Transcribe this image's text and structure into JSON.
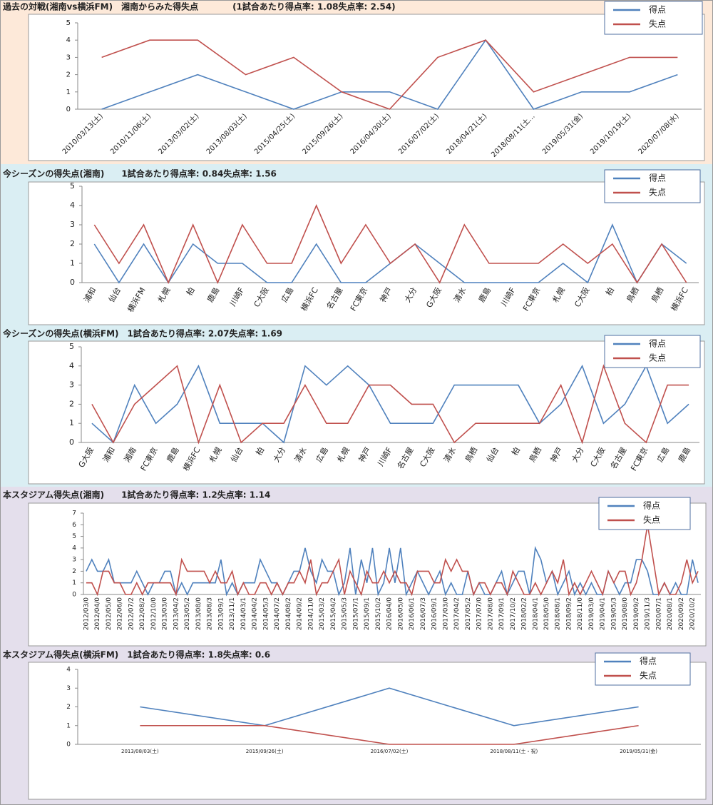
{
  "chart_data": [
    {
      "type": "line",
      "title": "過去の対戦(湘南vs横浜FM)　湘南からみた得失点　　　　(1試合あたり得点率: 1.08失点率: 2.54)",
      "categories": [
        "2010/03/13(土)",
        "2010/11/06(土)",
        "2013/03/02(土)",
        "2013/08/03(土)",
        "2015/04/25(土)",
        "2015/09/26(土)",
        "2016/04/30(土)",
        "2016/07/02(土)",
        "2018/04/21(土)",
        "2018/08/11(土…",
        "2019/05/31(金)",
        "2019/10/19(土)",
        "2020/07/08(水)"
      ],
      "series": [
        {
          "name": "得点",
          "color": "#4f81bd",
          "values": [
            0,
            1,
            2,
            1,
            0,
            1,
            1,
            0,
            4,
            0,
            1,
            1,
            2
          ]
        },
        {
          "name": "失点",
          "color": "#c0504d",
          "values": [
            3,
            4,
            4,
            2,
            3,
            1,
            0,
            3,
            4,
            1,
            2,
            3,
            3
          ]
        }
      ],
      "ylim": [
        0,
        5
      ],
      "yticks": [
        0,
        1,
        2,
        3,
        4,
        5
      ],
      "grid": false,
      "legend": "top-right"
    },
    {
      "type": "line",
      "title": "今シーズンの得失点(湘南)　　1試合あたり得点率: 0.84失点率: 1.56",
      "categories": [
        "浦和",
        "仙台",
        "横浜FM",
        "札幌",
        "柏",
        "鹿島",
        "川崎F",
        "C大阪",
        "広島",
        "横浜FC",
        "名古屋",
        "FC東京",
        "神戸",
        "大分",
        "G大阪",
        "清水",
        "鹿島",
        "川崎F",
        "FC東京",
        "札幌",
        "C大阪",
        "柏",
        "鳥栖",
        "鳥栖",
        "横浜FC"
      ],
      "series": [
        {
          "name": "得点",
          "color": "#4f81bd",
          "values": [
            2,
            0,
            2,
            0,
            2,
            1,
            1,
            0,
            0,
            2,
            0,
            0,
            1,
            2,
            1,
            0,
            0,
            0,
            0,
            1,
            0,
            3,
            0,
            2,
            1
          ]
        },
        {
          "name": "失点",
          "color": "#c0504d",
          "values": [
            3,
            1,
            3,
            0,
            3,
            0,
            3,
            1,
            1,
            4,
            1,
            3,
            1,
            2,
            0,
            3,
            1,
            1,
            1,
            2,
            1,
            2,
            0,
            2,
            0
          ]
        }
      ],
      "ylim": [
        0,
        5
      ],
      "yticks": [
        0,
        1,
        2,
        3,
        4,
        5
      ],
      "grid": false,
      "legend": "top-right"
    },
    {
      "type": "line",
      "title": "今シーズンの得失点(横浜FM)　1試合あたり得点率: 2.07失点率: 1.69",
      "categories": [
        "G大阪",
        "浦和",
        "湘南",
        "FC東京",
        "鹿島",
        "横浜FC",
        "札幌",
        "仙台",
        "柏",
        "大分",
        "清水",
        "広島",
        "札幌",
        "神戸",
        "川崎F",
        "名古屋",
        "C大阪",
        "清水",
        "鳥栖",
        "仙台",
        "柏",
        "鳥栖",
        "神戸",
        "大分",
        "C大阪",
        "名古屋",
        "FC東京",
        "広島",
        "鹿島"
      ],
      "series": [
        {
          "name": "得点",
          "color": "#4f81bd",
          "values": [
            1,
            0,
            3,
            1,
            2,
            4,
            1,
            1,
            1,
            0,
            4,
            3,
            4,
            3,
            1,
            1,
            1,
            3,
            3,
            3,
            3,
            1,
            2,
            4,
            1,
            2,
            4,
            1,
            2
          ]
        },
        {
          "name": "失点",
          "color": "#c0504d",
          "values": [
            2,
            0,
            2,
            3,
            4,
            0,
            3,
            0,
            1,
            1,
            3,
            1,
            1,
            3,
            3,
            2,
            2,
            0,
            1,
            1,
            1,
            1,
            3,
            0,
            4,
            1,
            0,
            3,
            3
          ]
        }
      ],
      "ylim": [
        0,
        5
      ],
      "yticks": [
        0,
        1,
        2,
        3,
        4,
        5
      ],
      "grid": false,
      "legend": "top-right"
    },
    {
      "type": "line",
      "title": "本スタジアム得失点(湘南)　　1試合あたり得点率: 1.2失点率: 1.14",
      "categories": [
        "2012/03/0",
        null,
        "2012/04/0",
        null,
        "2012/05/0",
        null,
        "2012/06/0",
        null,
        "2012/07/2",
        null,
        "2012/08/2",
        null,
        "2012/10/0",
        null,
        "2013/03/0",
        null,
        "2013/04/2",
        null,
        "2013/05/2",
        null,
        "2013/08/0",
        null,
        "2013/08/3",
        null,
        "2013/09/1",
        null,
        "2013/11/1",
        null,
        "2014/03/1",
        null,
        "2014/04/2",
        null,
        "2014/05/3",
        null,
        "2014/07/2",
        null,
        "2014/08/2",
        null,
        "2014/09/2",
        null,
        "2014/11/0",
        null,
        "2015/03/2",
        null,
        "2015/04/2",
        null,
        "2015/05/3",
        null,
        "2015/07/1",
        null,
        "2015/09/1",
        null,
        "2015/10/2",
        null,
        "2016/04/0",
        null,
        "2016/05/0",
        null,
        "2016/06/1",
        null,
        "2016/07/3",
        null,
        "2016/09/1",
        null,
        "2017/03/0",
        null,
        "2017/04/2",
        null,
        "2017/05/2",
        null,
        "2017/07/0",
        null,
        "2017/08/0",
        null,
        "2017/09/1",
        null,
        "2017/10/2",
        null,
        "2018/02/2",
        null,
        "2018/04/1",
        null,
        "2018/05/0",
        null,
        "2018/08/1",
        null,
        "2018/09/2",
        null,
        "2018/11/0",
        null,
        "2019/03/0",
        null,
        "2019/04/1",
        null,
        "2019/05/3",
        null,
        "2019/08/0",
        null,
        "2019/09/2",
        null,
        "2019/11/3",
        null,
        "2020/07/1",
        null,
        "2020/08/1",
        null,
        "2020/09/2",
        null,
        "2020/10/2",
        null
      ],
      "series": [
        {
          "name": "得点",
          "color": "#4f81bd",
          "values": [
            2,
            3,
            2,
            2,
            3,
            1,
            1,
            1,
            1,
            2,
            1,
            0,
            1,
            1,
            2,
            2,
            0,
            1,
            0,
            1,
            1,
            1,
            1,
            1,
            3,
            0,
            1,
            0,
            1,
            1,
            1,
            3,
            2,
            1,
            1,
            0,
            1,
            2,
            2,
            4,
            2,
            1,
            3,
            2,
            2,
            0,
            1,
            4,
            0,
            3,
            1,
            4,
            0,
            1,
            4,
            1,
            4,
            0,
            1,
            2,
            1,
            0,
            1,
            2,
            0,
            1,
            0,
            0,
            2,
            0,
            1,
            0,
            0,
            1,
            2,
            0,
            1,
            2,
            2,
            0,
            4,
            3,
            1,
            2,
            0,
            1,
            2,
            0,
            1,
            0,
            1,
            0,
            0,
            2,
            1,
            0,
            1,
            1,
            3,
            3,
            2,
            0,
            0,
            1,
            0,
            1,
            0,
            0,
            3,
            1
          ]
        },
        {
          "name": "失点",
          "color": "#c0504d",
          "values": [
            1,
            1,
            0,
            2,
            2,
            1,
            1,
            0,
            0,
            1,
            0,
            1,
            1,
            1,
            1,
            1,
            0,
            3,
            2,
            2,
            2,
            2,
            1,
            2,
            1,
            1,
            2,
            0,
            1,
            0,
            0,
            1,
            1,
            0,
            1,
            0,
            1,
            1,
            2,
            1,
            3,
            0,
            1,
            1,
            2,
            3,
            0,
            2,
            1,
            0,
            2,
            1,
            1,
            2,
            1,
            2,
            1,
            1,
            0,
            2,
            2,
            2,
            1,
            1,
            3,
            2,
            3,
            2,
            2,
            0,
            1,
            1,
            0,
            1,
            1,
            0,
            2,
            1,
            0,
            0,
            1,
            0,
            1,
            2,
            1,
            3,
            0,
            1,
            0,
            1,
            2,
            1,
            0,
            2,
            1,
            2,
            2,
            0,
            1,
            3,
            6,
            3,
            0,
            1,
            0,
            0,
            1,
            3,
            1,
            2
          ]
        }
      ],
      "ylim": [
        0,
        7
      ],
      "yticks": [
        0,
        1,
        2,
        3,
        4,
        5,
        6,
        7
      ],
      "grid": false,
      "legend": "top-right"
    },
    {
      "type": "line",
      "title": "本スタジアム得失点(横浜FM)　1試合あたり得点率: 1.8失点率: 0.6",
      "categories": [
        "2013/08/03(土)",
        "2015/09/26(土)",
        "2016/07/02(土)",
        "2018/08/11(土・祝)",
        "2019/05/31(金)"
      ],
      "series": [
        {
          "name": "得点",
          "color": "#4f81bd",
          "values": [
            2,
            1,
            3,
            1,
            2
          ]
        },
        {
          "name": "失点",
          "color": "#c0504d",
          "values": [
            1,
            1,
            0,
            0,
            1
          ]
        }
      ],
      "ylim": [
        0,
        4
      ],
      "yticks": [
        0,
        1,
        2,
        3,
        4
      ],
      "grid": false,
      "legend": "top-right"
    }
  ]
}
